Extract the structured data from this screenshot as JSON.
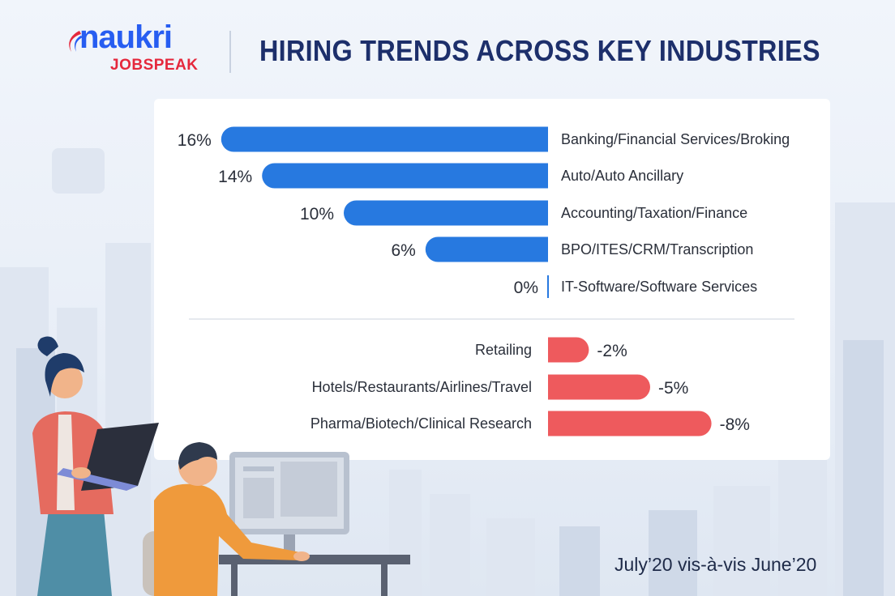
{
  "logo": {
    "brand": "naukri",
    "sub": "JOBSPEAK"
  },
  "header": {
    "title": "HIRING TRENDS ACROSS KEY INDUSTRIES"
  },
  "footer": {
    "note": "July’20 vis-à-vis June’20"
  },
  "colors": {
    "positive": "#2779e0",
    "negative": "#ee5a5d",
    "title": "#1d2f6b",
    "axis": "#2779e0"
  },
  "chart_data": {
    "type": "bar",
    "orientation": "horizontal",
    "unit": "%",
    "categories": [
      "Banking/Financial Services/Broking",
      "Auto/Auto Ancillary",
      "Accounting/Taxation/Finance",
      "BPO/ITES/CRM/Transcription",
      "IT-Software/Software Services",
      "Retailing",
      "Hotels/Restaurants/Airlines/Travel",
      "Pharma/Biotech/Clinical Research"
    ],
    "values": [
      16,
      14,
      10,
      6,
      0,
      -2,
      -5,
      -8
    ],
    "labels": [
      "16%",
      "14%",
      "10%",
      "6%",
      "0%",
      "-2%",
      "-5%",
      "-8%"
    ],
    "xlim": [
      -8,
      16
    ],
    "grid": false,
    "legend": "none"
  }
}
